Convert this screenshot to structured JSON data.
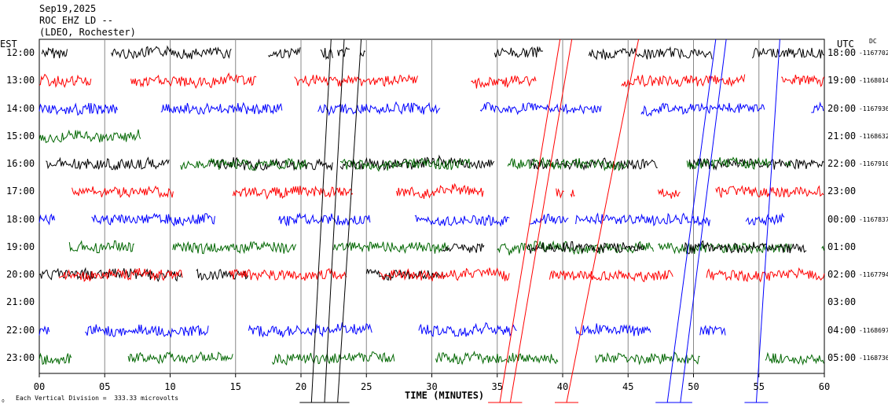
{
  "header": {
    "date": "Sep19,2025",
    "station": "ROC EHZ LD --",
    "network": "(LDEO, Rochester)"
  },
  "left_label": "EST",
  "right_label": "UTC",
  "dc_label": "DC",
  "footer_scale": "Each Vertical Division =  333.33 microvolts",
  "chart_data": {
    "type": "line",
    "xlabel": "TIME (MINUTES)",
    "x_ticks": [
      "00",
      "05",
      "10",
      "15",
      "20",
      "25",
      "30",
      "35",
      "40",
      "45",
      "50",
      "55",
      "60"
    ],
    "xlim": [
      0,
      60
    ],
    "colors": [
      "#000000",
      "#ff0000",
      "#0000ff",
      "#006600"
    ],
    "rows": [
      {
        "est": "12:00",
        "utc": "18:00",
        "dc": "-1167702"
      },
      {
        "est": "13:00",
        "utc": "19:00",
        "dc": "-1168014"
      },
      {
        "est": "14:00",
        "utc": "20:00",
        "dc": "-1167936"
      },
      {
        "est": "15:00",
        "utc": "21:00",
        "dc": "-1168632"
      },
      {
        "est": "16:00",
        "utc": "22:00",
        "dc": "-1167910"
      },
      {
        "est": "17:00",
        "utc": "23:00",
        "dc": ""
      },
      {
        "est": "18:00",
        "utc": "00:00",
        "dc": "-1167837"
      },
      {
        "est": "19:00",
        "utc": "01:00",
        "dc": ""
      },
      {
        "est": "20:00",
        "utc": "02:00",
        "dc": "-1167794"
      },
      {
        "est": "21:00",
        "utc": "03:00",
        "dc": ""
      },
      {
        "est": "22:00",
        "utc": "04:00",
        "dc": "-1168697"
      },
      {
        "est": "23:00",
        "utc": "05:00",
        "dc": "-1168736"
      }
    ],
    "traces": [
      {
        "row": 0,
        "color": 0,
        "segments": [
          [
            0.2,
            2.2
          ],
          [
            5.5,
            14.7
          ],
          [
            17.5,
            20
          ],
          [
            21.5,
            22.5
          ],
          [
            22.8,
            23.8
          ],
          [
            24.5,
            25
          ],
          [
            34.8,
            38.5
          ],
          [
            42,
            51.5
          ],
          [
            54.5,
            60
          ]
        ]
      },
      {
        "row": 1,
        "color": 1,
        "segments": [
          [
            0,
            4
          ],
          [
            7,
            16.6
          ],
          [
            19.5,
            29
          ],
          [
            33,
            38
          ],
          [
            44.5,
            54
          ],
          [
            56.7,
            60
          ]
        ]
      },
      {
        "row": 2,
        "color": 2,
        "segments": [
          [
            0,
            6
          ],
          [
            9.3,
            18.6
          ],
          [
            21.3,
            30.7
          ],
          [
            33.7,
            40
          ],
          [
            40,
            43
          ],
          [
            46,
            55.5
          ],
          [
            59,
            60
          ]
        ]
      },
      {
        "row": 3,
        "color": 3,
        "segments": [
          [
            0,
            7.8
          ]
        ]
      },
      {
        "row": 4,
        "color": 0,
        "segments": [
          [
            0.5,
            10
          ],
          [
            13,
            22.5
          ],
          [
            23,
            34.8
          ],
          [
            37.5,
            47.3
          ],
          [
            49.7,
            60
          ]
        ]
      },
      {
        "row": 4,
        "color": 3,
        "segments": [
          [
            10.8,
            20.5
          ],
          [
            23,
            33
          ],
          [
            35.8,
            45
          ],
          [
            49.5,
            56
          ],
          [
            57,
            57.5
          ]
        ]
      },
      {
        "row": 5,
        "color": 1,
        "segments": [
          [
            2.5,
            10.3
          ],
          [
            14.8,
            24
          ],
          [
            27.3,
            34
          ],
          [
            39.5,
            40.1
          ],
          [
            40.6,
            41
          ],
          [
            47.3,
            49
          ],
          [
            51.7,
            60
          ]
        ]
      },
      {
        "row": 6,
        "color": 2,
        "segments": [
          [
            0,
            1.2
          ],
          [
            4,
            13.5
          ],
          [
            18.3,
            25.3
          ],
          [
            28.7,
            36
          ],
          [
            37.5,
            40.5
          ],
          [
            41,
            51.3
          ],
          [
            54,
            57
          ]
        ]
      },
      {
        "row": 7,
        "color": 3,
        "segments": [
          [
            2.3,
            7.3
          ],
          [
            10.2,
            19.7
          ],
          [
            22.5,
            31.3
          ],
          [
            35,
            47
          ],
          [
            47.3,
            57.5
          ],
          [
            59.8,
            60
          ]
        ]
      },
      {
        "row": 7,
        "color": 0,
        "segments": [
          [
            30.8,
            34
          ],
          [
            37.3,
            40.5
          ],
          [
            40.5,
            46.3
          ],
          [
            49.3,
            58.7
          ]
        ]
      },
      {
        "row": 8,
        "color": 0,
        "segments": [
          [
            0,
            11
          ],
          [
            12,
            16
          ],
          [
            25,
            31
          ]
        ]
      },
      {
        "row": 8,
        "color": 1,
        "segments": [
          [
            1.5,
            11
          ],
          [
            14.5,
            23.5
          ],
          [
            26,
            36
          ],
          [
            39,
            48
          ],
          [
            48,
            48.5
          ],
          [
            51,
            60
          ]
        ]
      },
      {
        "row": 10,
        "color": 2,
        "segments": [
          [
            0,
            0.8
          ],
          [
            3.5,
            13
          ],
          [
            16,
            25.5
          ],
          [
            29,
            36.5
          ],
          [
            41,
            46.8
          ],
          [
            50.5,
            52.5
          ]
        ]
      },
      {
        "row": 11,
        "color": 3,
        "segments": [
          [
            0,
            2.5
          ],
          [
            6.8,
            14.8
          ],
          [
            17.8,
            27.2
          ],
          [
            30.3,
            39.7
          ],
          [
            42.5,
            50.5
          ],
          [
            55.5,
            60
          ]
        ]
      }
    ],
    "slants": [
      {
        "color": 0,
        "x0": 20.8,
        "x1": 22.3
      },
      {
        "color": 0,
        "x0": 21.8,
        "x1": 23.3
      },
      {
        "color": 0,
        "x0": 22.8,
        "x1": 24.6
      },
      {
        "color": 1,
        "x0": 35.2,
        "x1": 39.8
      },
      {
        "color": 1,
        "x0": 36,
        "x1": 40.7
      },
      {
        "color": 1,
        "x0": 40.3,
        "x1": 45.8
      },
      {
        "color": 2,
        "x0": 48,
        "x1": 51.7
      },
      {
        "color": 2,
        "x0": 49,
        "x1": 52.5
      },
      {
        "color": 2,
        "x0": 54.8,
        "x1": 56.6
      }
    ]
  }
}
